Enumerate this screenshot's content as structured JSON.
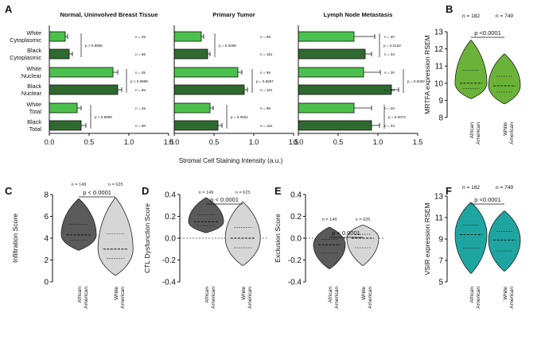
{
  "colors": {
    "white_bar": "#4cc04c",
    "black_bar": "#2e6a2e",
    "violin_green": "#6ab338",
    "violin_teal": "#1ea5a2",
    "violin_dark": "#5a5a5a",
    "violin_light": "#d6d6d6"
  },
  "chart_data": [
    {
      "panel": "A",
      "type": "bar",
      "orientation": "horizontal",
      "xlabel": "Stromal Cell Staining Intensity (a.u.)",
      "xlim": [
        0,
        1.5
      ],
      "xticks": [
        "0.0",
        "0.5",
        "1.0",
        "1.5"
      ],
      "categories": [
        "White Cytoplasmic",
        "Black Cytoplasmic",
        "White Nuclear",
        "Black Nuclear",
        "White Total",
        "Black Total"
      ],
      "category_lines": [
        [
          "White",
          "Cytoplasmic"
        ],
        [
          "Black",
          "Cytoplasmic"
        ],
        [
          "White",
          "Nuclear"
        ],
        [
          "Black",
          "Nuclear"
        ],
        [
          "White",
          "Total"
        ],
        [
          "Black",
          "Total"
        ]
      ],
      "subplots": [
        {
          "title": "Normal, Uninvolved Breast Tissue",
          "values": [
            0.2,
            0.25,
            0.8,
            0.86,
            0.35,
            0.4
          ],
          "errors": [
            0.03,
            0.04,
            0.06,
            0.05,
            0.05,
            0.06
          ],
          "n_labels": [
            "n = 25",
            "n = 66",
            "n = 25",
            "n = 66",
            "n = 25",
            "n = 66"
          ],
          "p_labels": [
            "p > 0.9999",
            "p > 0.9999",
            "p > 0.9999"
          ]
        },
        {
          "title": "Primary Tumor",
          "values": [
            0.34,
            0.42,
            0.8,
            0.88,
            0.45,
            0.55
          ],
          "errors": [
            0.03,
            0.03,
            0.05,
            0.04,
            0.04,
            0.05
          ],
          "n_labels": [
            "n = 99",
            "n = 181",
            "n = 99",
            "n = 181",
            "n = 99",
            "n = 181"
          ],
          "p_labels": [
            "p = 0.0298",
            "p = 0.6657",
            "p = 0.0551"
          ]
        },
        {
          "title": "Lymph Node Metastasis",
          "values": [
            0.7,
            0.84,
            0.82,
            1.17,
            0.7,
            0.92
          ],
          "errors": [
            0.26,
            0.08,
            0.21,
            0.09,
            0.22,
            0.1
          ],
          "n_labels": [
            "n = 20",
            "n = 33",
            "n = 20",
            "n = 33",
            "n = 20",
            "n = 33"
          ],
          "p_labels": [
            "p = 0.0120",
            "p = 0.0092",
            "p = 0.0074"
          ]
        }
      ]
    },
    {
      "panel": "B",
      "type": "violin",
      "ylabel": "MRTFA expression RSEM",
      "ylim": [
        8,
        13
      ],
      "yticks": [
        "8",
        "9",
        "10",
        "11",
        "12",
        "13"
      ],
      "categories": [
        "African American",
        "White American"
      ],
      "n_labels": [
        "n = 182",
        "n = 749"
      ],
      "p_label": "p <0.0001",
      "medians": [
        10.0,
        9.85
      ],
      "ranges": [
        [
          9.1,
          12.5
        ],
        [
          8.8,
          11.7
        ]
      ]
    },
    {
      "panel": "C",
      "type": "violin",
      "ylabel": "Infiltration Score",
      "ylim": [
        0,
        8
      ],
      "yticks": [
        "0",
        "2",
        "4",
        "6",
        "8"
      ],
      "categories": [
        "African American",
        "White American"
      ],
      "n_labels": [
        "n = 149",
        "n = 625"
      ],
      "p_label": "p < 0.0001",
      "medians": [
        4.3,
        3.0
      ],
      "ranges": [
        [
          2.9,
          7.6
        ],
        [
          0.6,
          7.7
        ]
      ]
    },
    {
      "panel": "D",
      "type": "violin",
      "ylabel": "CTL Dysfunction Score",
      "ylim": [
        -0.4,
        0.4
      ],
      "yticks": [
        "-0.4",
        "-0.2",
        "0.0",
        "0.2",
        "0.4"
      ],
      "categories": [
        "African American",
        "White American"
      ],
      "n_labels": [
        "n = 149",
        "n = 625"
      ],
      "p_label": "p < 0.0001",
      "medians": [
        0.15,
        0.0
      ],
      "ranges": [
        [
          0.05,
          0.37
        ],
        [
          -0.25,
          0.33
        ]
      ]
    },
    {
      "panel": "E",
      "type": "violin",
      "ylabel": "Exclusion Score",
      "ylim": [
        -0.4,
        0.4
      ],
      "yticks": [
        "-0.4",
        "-0.2",
        "0.0",
        "0.2",
        "0.4"
      ],
      "categories": [
        "African American",
        "White American"
      ],
      "n_labels": [
        "n = 149",
        "n = 625"
      ],
      "p_label": "p < 0.0001",
      "medians": [
        -0.06,
        0.0
      ],
      "ranges": [
        [
          -0.28,
          0.1
        ],
        [
          -0.25,
          0.12
        ]
      ]
    },
    {
      "panel": "F",
      "type": "violin",
      "ylabel": "VSIR expression RSEM",
      "ylim": [
        5,
        13
      ],
      "yticks": [
        "5",
        "7",
        "9",
        "11",
        "13"
      ],
      "categories": [
        "African American",
        "White American"
      ],
      "n_labels": [
        "n = 182",
        "n = 749"
      ],
      "p_label": "p <0.0001",
      "medians": [
        9.4,
        8.9
      ],
      "ranges": [
        [
          5.8,
          12.4
        ],
        [
          6.0,
          11.6
        ]
      ]
    }
  ]
}
